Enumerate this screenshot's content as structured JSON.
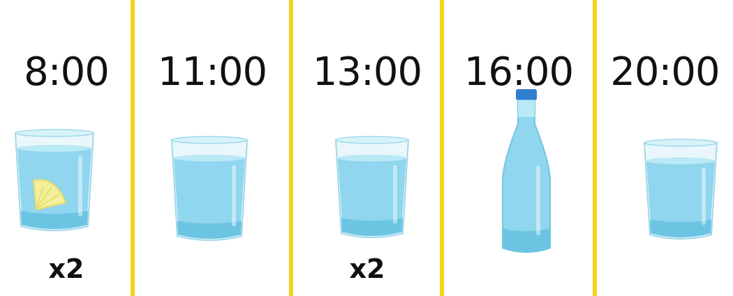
{
  "schedule": [
    {
      "time": "8:00",
      "vessel": "glass-with-lemon",
      "count": "x2"
    },
    {
      "time": "11:00",
      "vessel": "glass",
      "count": ""
    },
    {
      "time": "13:00",
      "vessel": "glass",
      "count": "x2"
    },
    {
      "time": "16:00",
      "vessel": "bottle",
      "count": ""
    },
    {
      "time": "20:00",
      "vessel": "glass",
      "count": ""
    }
  ],
  "colors": {
    "divider": "#f6d31b",
    "water": "#8fd6ee",
    "glass_rim": "#c9ecf7",
    "bottle_cap": "#2f7fd0",
    "lemon": "#f3ef9a"
  }
}
